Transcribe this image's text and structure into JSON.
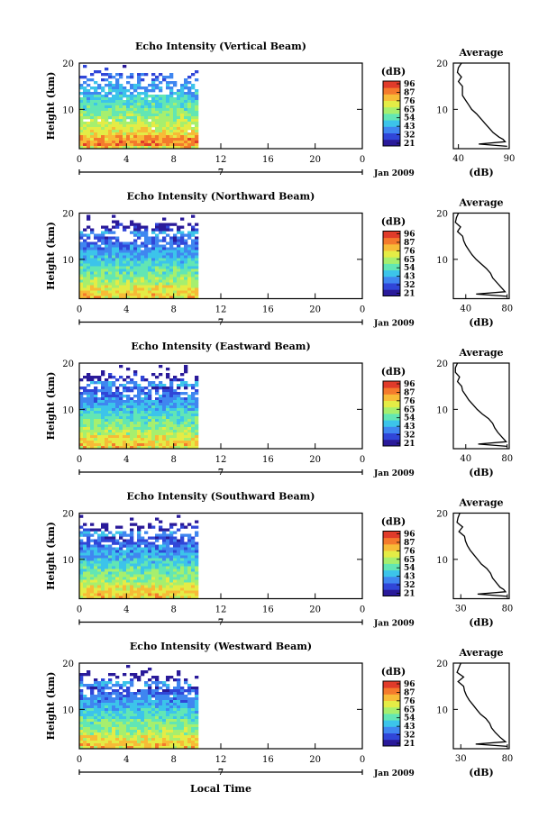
{
  "figure": {
    "x_axis_title": "Local Time",
    "date_label": "Jan 2009",
    "day_marker": "7"
  },
  "colors": {
    "scale": [
      "#2a1a9a",
      "#3046d8",
      "#3f86f0",
      "#3cc4ea",
      "#62e6b4",
      "#a6ef6e",
      "#e4ec46",
      "#f7bb37",
      "#f47a2c",
      "#e03b2a"
    ],
    "line": "#000000",
    "background": "#ffffff"
  },
  "chart_data": [
    {
      "type": "heatmap",
      "title": "Echo Intensity (Vertical Beam)",
      "xlabel": "",
      "ylabel": "Height (km)",
      "xlim": [
        0,
        24
      ],
      "ylim": [
        1.5,
        20
      ],
      "xticks": [
        "0",
        "4",
        "8",
        "12",
        "16",
        "20",
        "0"
      ],
      "yticks": [
        10,
        20
      ],
      "data_extent_hours": [
        0,
        10
      ],
      "colorbar": {
        "label": "(dB)",
        "ticks": [
          "96",
          "87",
          "76",
          "65",
          "54",
          "43",
          "32",
          "21"
        ],
        "range": [
          21,
          96
        ]
      },
      "profile": {
        "title": "Average",
        "xlabel": "(dB)",
        "xlim": [
          35,
          90
        ],
        "xticks": [
          "40",
          "90"
        ],
        "yticks": [
          10,
          20
        ],
        "height": [
          2,
          2.5,
          3,
          3.5,
          4,
          5,
          6,
          7,
          8,
          9,
          10,
          11,
          12,
          13,
          14,
          15,
          16,
          17,
          18,
          19,
          20
        ],
        "db": [
          88,
          60,
          86,
          84,
          80,
          74,
          70,
          66,
          62,
          58,
          53,
          50,
          47,
          44,
          44,
          44,
          40,
          43,
          39,
          40,
          43
        ]
      }
    },
    {
      "type": "heatmap",
      "title": "Echo Intensity (Northward Beam)",
      "xlabel": "",
      "ylabel": "Height (km)",
      "xlim": [
        0,
        24
      ],
      "ylim": [
        1.5,
        20
      ],
      "xticks": [
        "0",
        "4",
        "8",
        "12",
        "16",
        "20",
        "0"
      ],
      "yticks": [
        10,
        20
      ],
      "data_extent_hours": [
        0,
        10
      ],
      "colorbar": {
        "label": "(dB)",
        "ticks": [
          "96",
          "87",
          "76",
          "65",
          "54",
          "43",
          "32",
          "21"
        ],
        "range": [
          21,
          96
        ]
      },
      "profile": {
        "title": "Average",
        "xlabel": "(dB)",
        "xlim": [
          28,
          82
        ],
        "xticks": [
          "40",
          "80"
        ],
        "yticks": [
          10,
          20
        ],
        "height": [
          2,
          2.5,
          3,
          3.5,
          4,
          5,
          6,
          7,
          8,
          9,
          10,
          11,
          12,
          13,
          14,
          15,
          16,
          17,
          18,
          19,
          20
        ],
        "db": [
          80,
          50,
          78,
          76,
          74,
          70,
          66,
          64,
          60,
          55,
          50,
          46,
          43,
          40,
          38,
          37,
          32,
          35,
          30,
          31,
          33
        ]
      }
    },
    {
      "type": "heatmap",
      "title": "Echo Intensity (Eastward Beam)",
      "xlabel": "",
      "ylabel": "Height (km)",
      "xlim": [
        0,
        24
      ],
      "ylim": [
        1.5,
        20
      ],
      "xticks": [
        "0",
        "4",
        "8",
        "12",
        "16",
        "20",
        "0"
      ],
      "yticks": [
        10,
        20
      ],
      "data_extent_hours": [
        0,
        10
      ],
      "colorbar": {
        "label": "(dB)",
        "ticks": [
          "96",
          "87",
          "76",
          "65",
          "54",
          "43",
          "32",
          "21"
        ],
        "range": [
          21,
          96
        ]
      },
      "profile": {
        "title": "Average",
        "xlabel": "(dB)",
        "xlim": [
          28,
          82
        ],
        "xticks": [
          "40",
          "80"
        ],
        "yticks": [
          10,
          20
        ],
        "height": [
          2,
          2.5,
          3,
          3.5,
          4,
          5,
          6,
          7,
          8,
          9,
          10,
          11,
          12,
          13,
          14,
          15,
          16,
          17,
          18,
          19,
          20
        ],
        "db": [
          80,
          52,
          79,
          77,
          75,
          71,
          68,
          66,
          62,
          56,
          51,
          47,
          43,
          40,
          37,
          36,
          32,
          34,
          30,
          30,
          32
        ]
      }
    },
    {
      "type": "heatmap",
      "title": "Echo Intensity (Southward Beam)",
      "xlabel": "",
      "ylabel": "Height (km)",
      "xlim": [
        0,
        24
      ],
      "ylim": [
        1.5,
        20
      ],
      "xticks": [
        "0",
        "4",
        "8",
        "12",
        "16",
        "20",
        "0"
      ],
      "yticks": [
        10,
        20
      ],
      "data_extent_hours": [
        0,
        10
      ],
      "colorbar": {
        "label": "(dB)",
        "ticks": [
          "96",
          "87",
          "76",
          "65",
          "54",
          "43",
          "32",
          "21"
        ],
        "range": [
          21,
          96
        ]
      },
      "profile": {
        "title": "Average",
        "xlabel": "(dB)",
        "xlim": [
          22,
          82
        ],
        "xticks": [
          "30",
          "80"
        ],
        "yticks": [
          10,
          20
        ],
        "height": [
          2,
          2.5,
          3,
          3.5,
          4,
          5,
          6,
          7,
          8,
          9,
          10,
          11,
          12,
          13,
          14,
          15,
          16,
          17,
          18,
          19,
          20
        ],
        "db": [
          80,
          48,
          78,
          76,
          72,
          68,
          64,
          62,
          58,
          52,
          48,
          44,
          40,
          37,
          35,
          34,
          28,
          32,
          26,
          27,
          29
        ]
      }
    },
    {
      "type": "heatmap",
      "title": "Echo Intensity (Westward Beam)",
      "xlabel": "Local Time",
      "ylabel": "Height (km)",
      "xlim": [
        0,
        24
      ],
      "ylim": [
        1.5,
        20
      ],
      "xticks": [
        "0",
        "4",
        "8",
        "12",
        "16",
        "20",
        "0"
      ],
      "yticks": [
        10,
        20
      ],
      "data_extent_hours": [
        0,
        10
      ],
      "colorbar": {
        "label": "(dB)",
        "ticks": [
          "96",
          "87",
          "76",
          "65",
          "54",
          "43",
          "32",
          "21"
        ],
        "range": [
          21,
          96
        ]
      },
      "profile": {
        "title": "Average",
        "xlabel": "(dB)",
        "xlim": [
          22,
          82
        ],
        "xticks": [
          "30",
          "80"
        ],
        "yticks": [
          10,
          20
        ],
        "height": [
          2,
          2.5,
          3,
          3.5,
          4,
          5,
          6,
          7,
          8,
          9,
          10,
          11,
          12,
          13,
          14,
          15,
          16,
          17,
          18,
          19,
          20
        ],
        "db": [
          80,
          46,
          78,
          75,
          72,
          67,
          63,
          61,
          57,
          51,
          47,
          43,
          39,
          36,
          34,
          33,
          27,
          33,
          26,
          28,
          30
        ]
      }
    }
  ]
}
